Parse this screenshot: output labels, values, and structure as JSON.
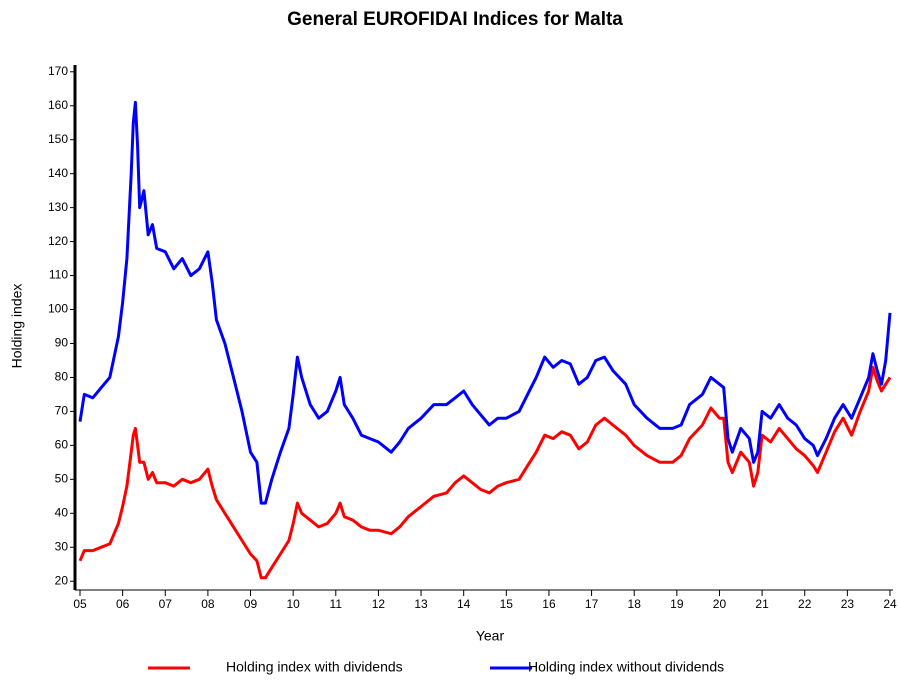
{
  "chart_data": {
    "type": "line",
    "title": "General EUROFIDAI Indices for Malta",
    "x_label": "Year",
    "y_label": "Holding index",
    "x": [
      2005.0,
      2005.1,
      2005.3,
      2005.5,
      2005.7,
      2005.9,
      2006.0,
      2006.1,
      2006.2,
      2006.25,
      2006.3,
      2006.35,
      2006.4,
      2006.5,
      2006.6,
      2006.7,
      2006.8,
      2007.0,
      2007.2,
      2007.4,
      2007.6,
      2007.8,
      2008.0,
      2008.1,
      2008.2,
      2008.4,
      2008.6,
      2008.8,
      2009.0,
      2009.15,
      2009.25,
      2009.35,
      2009.5,
      2009.7,
      2009.9,
      2010.0,
      2010.1,
      2010.2,
      2010.4,
      2010.6,
      2010.8,
      2011.0,
      2011.1,
      2011.2,
      2011.4,
      2011.6,
      2011.8,
      2012.0,
      2012.3,
      2012.5,
      2012.7,
      2013.0,
      2013.3,
      2013.6,
      2013.8,
      2014.0,
      2014.2,
      2014.4,
      2014.6,
      2014.8,
      2015.0,
      2015.3,
      2015.5,
      2015.7,
      2015.9,
      2016.1,
      2016.3,
      2016.5,
      2016.7,
      2016.9,
      2017.1,
      2017.3,
      2017.5,
      2017.8,
      2018.0,
      2018.3,
      2018.6,
      2018.9,
      2019.1,
      2019.3,
      2019.6,
      2019.8,
      2020.0,
      2020.1,
      2020.2,
      2020.3,
      2020.5,
      2020.7,
      2020.8,
      2020.9,
      2021.0,
      2021.2,
      2021.4,
      2021.6,
      2021.8,
      2022.0,
      2022.2,
      2022.3,
      2022.5,
      2022.7,
      2022.9,
      2023.1,
      2023.3,
      2023.5,
      2023.6,
      2023.7,
      2023.8,
      2023.9,
      2024.0
    ],
    "series": [
      {
        "name": "Holding index with dividends",
        "color": "#ff0000",
        "values": [
          26,
          29,
          29,
          30,
          31,
          37,
          42,
          48,
          58,
          63,
          65,
          60,
          55,
          55,
          50,
          52,
          49,
          49,
          48,
          50,
          49,
          50,
          53,
          48,
          44,
          40,
          36,
          32,
          28,
          26,
          21,
          21,
          24,
          28,
          32,
          37,
          43,
          40,
          38,
          36,
          37,
          40,
          43,
          39,
          38,
          36,
          35,
          35,
          34,
          36,
          39,
          42,
          45,
          46,
          49,
          51,
          49,
          47,
          46,
          48,
          49,
          50,
          54,
          58,
          63,
          62,
          64,
          63,
          59,
          61,
          66,
          68,
          66,
          63,
          60,
          57,
          55,
          55,
          57,
          62,
          66,
          71,
          68,
          68,
          55,
          52,
          58,
          55,
          48,
          52,
          63,
          61,
          65,
          62,
          59,
          57,
          54,
          52,
          58,
          64,
          68,
          63,
          70,
          76,
          83,
          79,
          76,
          78,
          80
        ]
      },
      {
        "name": "Holding index without dividends",
        "color": "#0000ff",
        "values": [
          67,
          75,
          74,
          77,
          80,
          92,
          102,
          115,
          140,
          155,
          161,
          148,
          130,
          135,
          122,
          125,
          118,
          117,
          112,
          115,
          110,
          112,
          117,
          108,
          97,
          90,
          80,
          70,
          58,
          55,
          43,
          43,
          50,
          58,
          65,
          75,
          86,
          80,
          72,
          68,
          70,
          76,
          80,
          72,
          68,
          63,
          62,
          61,
          58,
          61,
          65,
          68,
          72,
          72,
          74,
          76,
          72,
          69,
          66,
          68,
          68,
          70,
          75,
          80,
          86,
          83,
          85,
          84,
          78,
          80,
          85,
          86,
          82,
          78,
          72,
          68,
          65,
          65,
          66,
          72,
          75,
          80,
          78,
          77,
          62,
          58,
          65,
          62,
          55,
          58,
          70,
          68,
          72,
          68,
          66,
          62,
          60,
          57,
          62,
          68,
          72,
          68,
          74,
          80,
          87,
          82,
          78,
          85,
          99
        ]
      }
    ],
    "xlim": [
      2005,
      2024
    ],
    "xticks": [
      {
        "value": 2005,
        "label": "05"
      },
      {
        "value": 2006,
        "label": "06"
      },
      {
        "value": 2007,
        "label": "07"
      },
      {
        "value": 2008,
        "label": "08"
      },
      {
        "value": 2009,
        "label": "09"
      },
      {
        "value": 2010,
        "label": "10"
      },
      {
        "value": 2011,
        "label": "11"
      },
      {
        "value": 2012,
        "label": "12"
      },
      {
        "value": 2013,
        "label": "13"
      },
      {
        "value": 2014,
        "label": "14"
      },
      {
        "value": 2015,
        "label": "15"
      },
      {
        "value": 2016,
        "label": "16"
      },
      {
        "value": 2017,
        "label": "17"
      },
      {
        "value": 2018,
        "label": "18"
      },
      {
        "value": 2019,
        "label": "19"
      },
      {
        "value": 2020,
        "label": "20"
      },
      {
        "value": 2021,
        "label": "21"
      },
      {
        "value": 2022,
        "label": "22"
      },
      {
        "value": 2023,
        "label": "23"
      },
      {
        "value": 2024,
        "label": "24"
      }
    ],
    "ylim": [
      18,
      172
    ],
    "yticks": [
      20,
      30,
      40,
      50,
      60,
      70,
      80,
      90,
      100,
      110,
      120,
      130,
      140,
      150,
      160,
      170
    ]
  }
}
